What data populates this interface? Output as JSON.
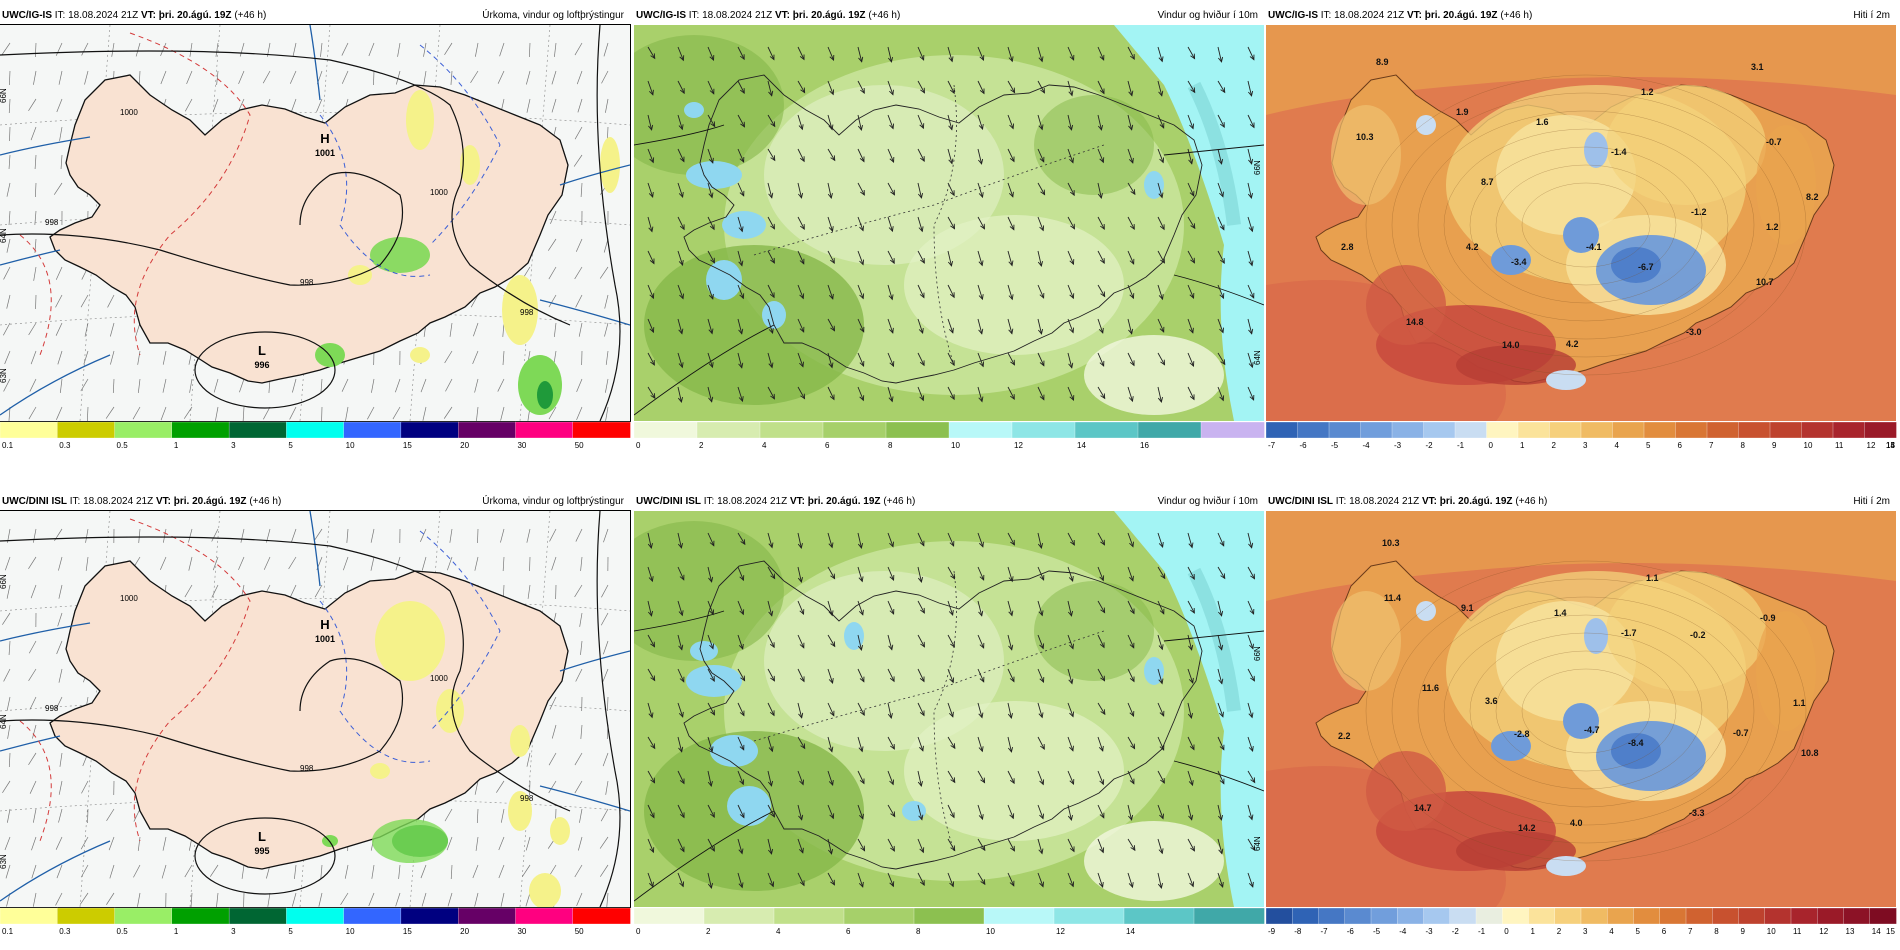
{
  "colors": {
    "precip_bg": "#f5f7f6",
    "land_precip": "#f9e2d2",
    "coast": "#111111",
    "isobar": "#111111",
    "front_blue": "#1f5fa8",
    "warm_red": "#d43b3b",
    "cold_blue": "#3c5fd6",
    "wind_mid": "#a9d06b",
    "wind_light": "#c8e39a",
    "wind_dark": "#86b84a",
    "sea_cyan": "#a3f4f4",
    "lake_blue": "#8fd7f0",
    "temp_sea": "#e07b4e",
    "temp_warm": "#c94b3e",
    "temp_land": "#e8a04f",
    "temp_high": "#f3d37c",
    "temp_ice": "#6f9bd9"
  },
  "rows": [
    {
      "model": "UWC/IG-IS",
      "init": " IT: 18.08.2024 21Z ",
      "vt_label": "VT:",
      "vt_value": " þri. 20.ágú. 19Z",
      "offset": " (+46 h)",
      "panels": [
        {
          "title_right": "Úrkoma, vindur og loftþrýstingur",
          "type": "precip",
          "pressure_labels": [
            {
              "text": "H",
              "sub": "1001"
            },
            {
              "text": "L",
              "sub": "996"
            }
          ],
          "isobar_labels": [
            "1000",
            "998",
            "1000",
            "998",
            "998"
          ],
          "lat_labels": [
            "66N",
            "64N",
            "63N"
          ],
          "colorbar": {
            "colors": [
              "#ffff99",
              "#cccc00",
              "#99ee66",
              "#00a000",
              "#006633",
              "#00ffee",
              "#3366ff",
              "#000080",
              "#660066",
              "#ff0080",
              "#ff0000"
            ],
            "ticks": [
              "0.1",
              "0.3",
              "0.5",
              "1",
              "3",
              "5",
              "10",
              "15",
              "20",
              "30",
              "50"
            ]
          }
        },
        {
          "title_right": "Vindur og hviður í 10m",
          "type": "wind",
          "lat_labels": [
            "66N",
            "64N"
          ],
          "colorbar": {
            "colors": [
              "#f0f8dc",
              "#d7ecb0",
              "#c0e08a",
              "#a6d06a",
              "#8cc050",
              "#b8f8f8",
              "#8ee6e6",
              "#5cc6c6",
              "#40a8a8",
              "#c9b3f0"
            ],
            "ticks": [
              "0",
              "2",
              "4",
              "6",
              "8",
              "10",
              "12",
              "14",
              "16"
            ]
          }
        },
        {
          "title_right": "Hiti í 2m",
          "type": "temp",
          "temp_labels": [
            "8.9",
            "10.3",
            "1.9",
            "1.6",
            "1.2",
            "3.1",
            "-1.4",
            "-0.7",
            "8.7",
            "8.2",
            "-1.2",
            "1.2",
            "2.8",
            "4.2",
            "-3.4",
            "-4.1",
            "-6.7",
            "10.7",
            "14.8",
            "14.0",
            "4.2",
            "-3.0"
          ],
          "colorbar": {
            "colors": [
              "#2f63b5",
              "#4577c4",
              "#5a8ad0",
              "#719edc",
              "#8ab2e6",
              "#a6c8ef",
              "#c9ddf2",
              "#fff5c0",
              "#fbe39b",
              "#f6d07c",
              "#f0bb63",
              "#e9a44e",
              "#e28d3e",
              "#d97634",
              "#d06230",
              "#c8512f",
              "#be422e",
              "#b4332e",
              "#a8242c",
              "#9a1a28"
            ],
            "ticks": [
              "-7",
              "-6",
              "-5",
              "-4",
              "-3",
              "-2",
              "-1",
              "0",
              "1",
              "2",
              "3",
              "4",
              "5",
              "6",
              "7",
              "8",
              "9",
              "10",
              "11",
              "12",
              "13",
              "14",
              "15"
            ]
          }
        }
      ]
    },
    {
      "model": "UWC/DINI ISL",
      "init": " IT: 18.08.2024 21Z ",
      "vt_label": "VT:",
      "vt_value": " þri. 20.ágú. 19Z",
      "offset": " (+46 h)",
      "panels": [
        {
          "title_right": "Úrkoma, vindur og loftþrýstingur",
          "type": "precip",
          "pressure_labels": [
            {
              "text": "H",
              "sub": "1001"
            },
            {
              "text": "L",
              "sub": "995"
            }
          ],
          "isobar_labels": [
            "1000",
            "998",
            "1000",
            "998",
            "998"
          ],
          "lat_labels": [
            "66N",
            "64N",
            "63N"
          ],
          "colorbar": {
            "colors": [
              "#ffff99",
              "#cccc00",
              "#99ee66",
              "#00a000",
              "#006633",
              "#00ffee",
              "#3366ff",
              "#000080",
              "#660066",
              "#ff0080",
              "#ff0000"
            ],
            "ticks": [
              "0.1",
              "0.3",
              "0.5",
              "1",
              "3",
              "5",
              "10",
              "15",
              "20",
              "30",
              "50"
            ]
          }
        },
        {
          "title_right": "Vindur og hviður í 10m",
          "type": "wind",
          "lat_labels": [
            "66N",
            "64N"
          ],
          "colorbar": {
            "colors": [
              "#f0f8dc",
              "#d7ecb0",
              "#c0e08a",
              "#a6d06a",
              "#8cc050",
              "#b8f8f8",
              "#8ee6e6",
              "#5cc6c6",
              "#40a8a8"
            ],
            "ticks": [
              "0",
              "2",
              "4",
              "6",
              "8",
              "10",
              "12",
              "14"
            ]
          }
        },
        {
          "title_right": "Hiti í 2m",
          "type": "temp",
          "temp_labels": [
            "10.3",
            "11.4",
            "9.1",
            "1.1",
            "1.4",
            "-1.7",
            "-0.2",
            "-0.9",
            "11.6",
            "3.6",
            "1.1",
            "2.2",
            "-2.8",
            "-4.7",
            "-0.7",
            "-8.4",
            "10.8",
            "14.7",
            "14.2",
            "4.0",
            "-3.3"
          ],
          "colorbar": {
            "colors": [
              "#234f9e",
              "#2f63b5",
              "#4577c4",
              "#5a8ad0",
              "#719edc",
              "#8ab2e6",
              "#a6c8ef",
              "#c9ddf2",
              "#e9eee0",
              "#fff5c0",
              "#fbe39b",
              "#f6d07c",
              "#f0bb63",
              "#e9a44e",
              "#e28d3e",
              "#d97634",
              "#d06230",
              "#c8512f",
              "#be422e",
              "#b4332e",
              "#a8242c",
              "#9a1a28",
              "#8c1226",
              "#7e0c22"
            ],
            "ticks": [
              "-9",
              "-8",
              "-7",
              "-6",
              "-5",
              "-4",
              "-3",
              "-2",
              "-1",
              "0",
              "1",
              "2",
              "3",
              "4",
              "5",
              "6",
              "7",
              "8",
              "9",
              "10",
              "11",
              "12",
              "13",
              "14",
              "15"
            ]
          }
        }
      ]
    }
  ]
}
